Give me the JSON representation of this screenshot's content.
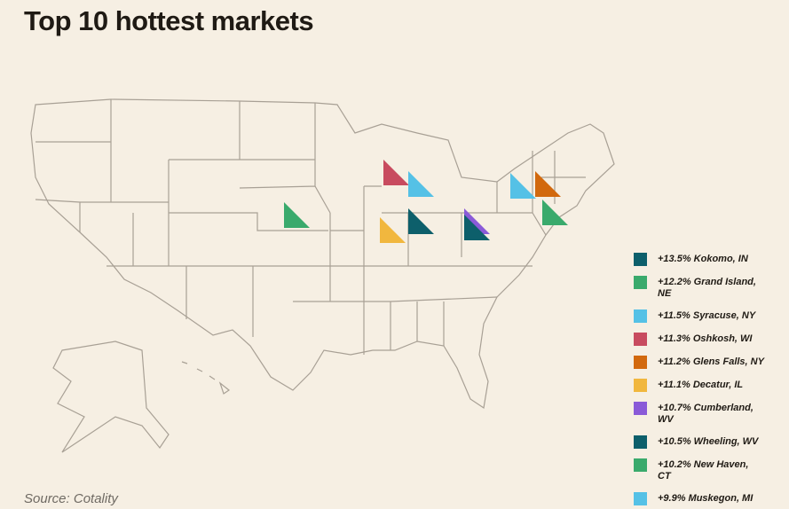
{
  "header": {
    "title": "Top 10 hottest markets"
  },
  "legend": {
    "items": [
      {
        "label": "+13.5% Kokomo, IN",
        "color": "#0d5f6b"
      },
      {
        "label": "+12.2% Grand Island, NE",
        "color": "#3aaa6c"
      },
      {
        "label": "+11.5% Syracuse, NY",
        "color": "#55c1e6"
      },
      {
        "label": "+11.3% Oshkosh, WI",
        "color": "#c84b5f"
      },
      {
        "label": "+11.2% Glens Falls, NY",
        "color": "#d2690e"
      },
      {
        "label": "+11.1% Decatur, IL",
        "color": "#f1b73e"
      },
      {
        "label": "+10.7% Cumberland, WV",
        "color": "#8a5ad8"
      },
      {
        "label": "+10.5% Wheeling, WV",
        "color": "#0d5f6b"
      },
      {
        "label": "+10.2% New Haven, CT",
        "color": "#3aaa6c"
      },
      {
        "label": "+9.9% Muskegon, MI",
        "color": "#55c1e6"
      }
    ]
  },
  "footer": {
    "source": "Source: Cotality"
  }
}
